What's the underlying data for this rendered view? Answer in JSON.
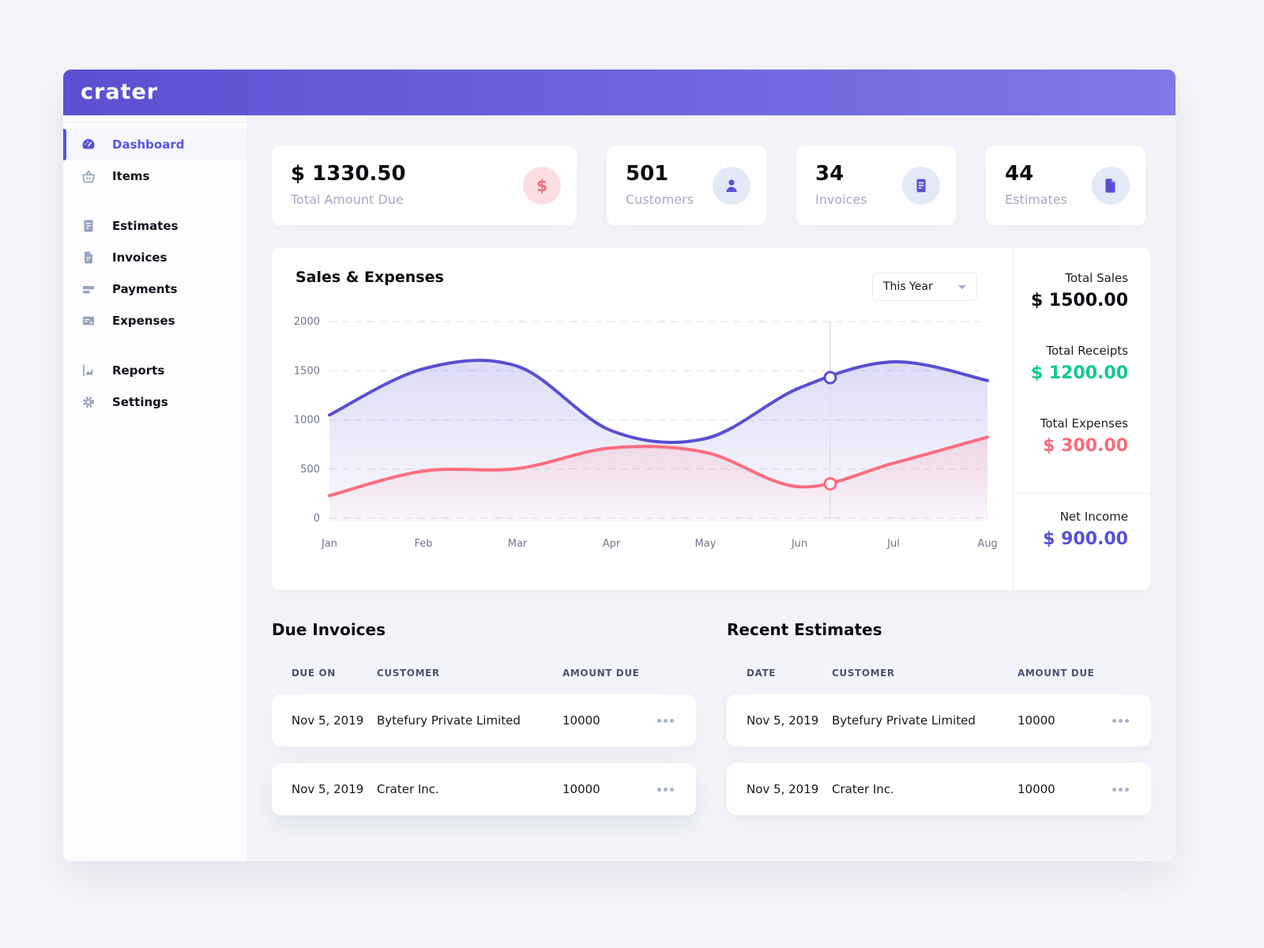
{
  "app": {
    "logo": "crater"
  },
  "colors": {
    "header_gradient": [
      "#5C50D2",
      "#8078E6"
    ],
    "accent_purple": "#5851D8",
    "green": "#0DC98F",
    "red": "#FB6B7B",
    "sidebar_icon": "#98A3BD"
  },
  "icons": {
    "dollar": "$"
  },
  "sidebar": {
    "items": [
      {
        "label": "Dashboard",
        "icon": "gauge-icon",
        "active": true
      },
      {
        "label": "Items",
        "icon": "basket-icon",
        "active": false
      },
      {
        "label": "Estimates",
        "icon": "document-lines-icon",
        "active": false
      },
      {
        "label": "Invoices",
        "icon": "document-icon",
        "active": false
      },
      {
        "label": "Payments",
        "icon": "credit-card-icon",
        "active": false
      },
      {
        "label": "Expenses",
        "icon": "card-lines-icon",
        "active": false
      },
      {
        "label": "Reports",
        "icon": "area-chart-icon",
        "active": false
      },
      {
        "label": "Settings",
        "icon": "gear-icon",
        "active": false
      }
    ]
  },
  "stats": [
    {
      "value": "$ 1330.50",
      "label": "Total Amount Due",
      "icon": "dollar-icon",
      "icon_bg": "#FBDEE2",
      "icon_color": "#F5697B"
    },
    {
      "value": "501",
      "label": "Customers",
      "icon": "person-icon",
      "icon_bg": "#E4E9F7",
      "icon_color": "#5851D8"
    },
    {
      "value": "34",
      "label": "Invoices",
      "icon": "invoice-icon",
      "icon_bg": "#E4E9F7",
      "icon_color": "#5851D8"
    },
    {
      "value": "44",
      "label": "Estimates",
      "icon": "estimate-icon",
      "icon_bg": "#E4E9F7",
      "icon_color": "#5851D8"
    }
  ],
  "chart_card": {
    "title": "Sales & Expenses",
    "range_selector": "This Year"
  },
  "chart_data": {
    "type": "area",
    "title": "Sales & Expenses",
    "x": [
      "Jan",
      "Feb",
      "Mar",
      "Apr",
      "May",
      "Jun",
      "Jul",
      "Aug"
    ],
    "series": [
      {
        "name": "Sales",
        "color": "#584FD1",
        "values": [
          1050,
          1520,
          1545,
          890,
          810,
          1325,
          1590,
          1400
        ]
      },
      {
        "name": "Expenses",
        "color": "#FA6E7E",
        "values": [
          230,
          480,
          505,
          715,
          670,
          320,
          560,
          825
        ]
      }
    ],
    "ylim": [
      0,
      2000
    ],
    "yticks": [
      0,
      500,
      1000,
      1500,
      2000
    ],
    "grid": "dashed-horizontal",
    "legend": "none",
    "hover": {
      "x_fraction": 0.761,
      "values": [
        1430,
        350
      ]
    }
  },
  "summary": {
    "items": [
      {
        "label": "Total Sales",
        "value": "$ 1500.00",
        "color": "#0D0E13"
      },
      {
        "label": "Total Receipts",
        "value": "$ 1200.00",
        "color": "#0DC98F"
      },
      {
        "label": "Total Expenses",
        "value": "$ 300.00",
        "color": "#FB6B7B"
      }
    ],
    "net": {
      "label": "Net Income",
      "value": "$ 900.00",
      "color": "#5851D8"
    }
  },
  "due_invoices": {
    "title": "Due Invoices",
    "columns": [
      "DUE ON",
      "CUSTOMER",
      "AMOUNT DUE"
    ],
    "rows": [
      {
        "date": "Nov 5, 2019",
        "customer": "Bytefury Private Limited",
        "amount": "10000"
      },
      {
        "date": "Nov 5, 2019",
        "customer": "Crater Inc.",
        "amount": "10000"
      }
    ]
  },
  "recent_estimates": {
    "title": "Recent Estimates",
    "columns": [
      "DATE",
      "CUSTOMER",
      "AMOUNT DUE"
    ],
    "rows": [
      {
        "date": "Nov 5, 2019",
        "customer": "Bytefury Private Limited",
        "amount": "10000"
      },
      {
        "date": "Nov 5, 2019",
        "customer": "Crater Inc.",
        "amount": "10000"
      }
    ]
  }
}
